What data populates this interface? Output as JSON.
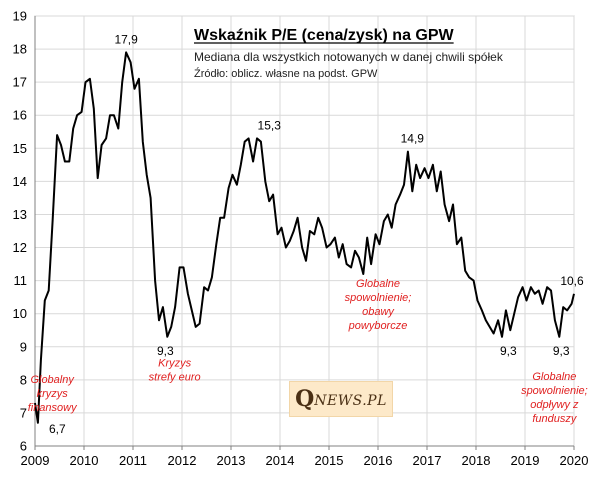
{
  "chart_data": {
    "type": "line",
    "title": "Wskaźnik P/E (cena/zysk) na GPW",
    "subtitle": "Mediana dla wszystkich notowanych w danej chwili spółek",
    "source": "Źródło: oblicz. własne na podst. GPW",
    "x_ticks": [
      "2009",
      "2010",
      "2011",
      "2012",
      "2013",
      "2014",
      "2015",
      "2016",
      "2017",
      "2018",
      "2019",
      "2020"
    ],
    "y_ticks": [
      "6",
      "7",
      "8",
      "9",
      "10",
      "11",
      "12",
      "13",
      "14",
      "15",
      "16",
      "17",
      "18",
      "19"
    ],
    "xlim": [
      2009,
      2020
    ],
    "ylim": [
      6,
      19
    ],
    "grid": true,
    "series": [
      {
        "x": [
          2009.0,
          2009.06,
          2009.12,
          2009.2,
          2009.28,
          2009.36,
          2009.45,
          2009.53,
          2009.61,
          2009.7,
          2009.78,
          2009.86,
          2009.95,
          2010.03,
          2010.12,
          2010.2,
          2010.28,
          2010.36,
          2010.45,
          2010.53,
          2010.61,
          2010.7,
          2010.78,
          2010.86,
          2010.95,
          2011.03,
          2011.12,
          2011.2,
          2011.28,
          2011.36,
          2011.45,
          2011.53,
          2011.61,
          2011.7,
          2011.78,
          2011.86,
          2011.95,
          2012.03,
          2012.12,
          2012.2,
          2012.28,
          2012.36,
          2012.45,
          2012.53,
          2012.61,
          2012.7,
          2012.78,
          2012.86,
          2012.95,
          2013.03,
          2013.12,
          2013.2,
          2013.28,
          2013.36,
          2013.45,
          2013.53,
          2013.61,
          2013.7,
          2013.78,
          2013.86,
          2013.95,
          2014.03,
          2014.12,
          2014.2,
          2014.28,
          2014.36,
          2014.45,
          2014.53,
          2014.61,
          2014.7,
          2014.78,
          2014.86,
          2014.95,
          2015.03,
          2015.12,
          2015.2,
          2015.28,
          2015.36,
          2015.45,
          2015.53,
          2015.61,
          2015.7,
          2015.78,
          2015.86,
          2015.95,
          2016.03,
          2016.12,
          2016.2,
          2016.28,
          2016.36,
          2016.45,
          2016.53,
          2016.61,
          2016.7,
          2016.78,
          2016.86,
          2016.95,
          2017.03,
          2017.12,
          2017.2,
          2017.28,
          2017.36,
          2017.45,
          2017.53,
          2017.61,
          2017.7,
          2017.78,
          2017.86,
          2017.95,
          2018.03,
          2018.12,
          2018.2,
          2018.28,
          2018.36,
          2018.45,
          2018.53,
          2018.61,
          2018.7,
          2018.78,
          2018.86,
          2018.95,
          2019.03,
          2019.12,
          2019.2,
          2019.28,
          2019.36,
          2019.45,
          2019.53,
          2019.61,
          2019.7,
          2019.78,
          2019.86,
          2019.95,
          2020.0
        ],
        "values": [
          7.3,
          6.7,
          8.6,
          10.4,
          10.7,
          12.8,
          15.4,
          15.1,
          14.6,
          14.6,
          15.6,
          16.0,
          16.1,
          17.0,
          17.1,
          16.2,
          14.1,
          15.1,
          15.3,
          16.0,
          16.0,
          15.6,
          17.0,
          17.9,
          17.6,
          16.8,
          17.1,
          15.2,
          14.2,
          13.5,
          11.0,
          9.8,
          10.2,
          9.3,
          9.6,
          10.2,
          11.4,
          11.4,
          10.6,
          10.1,
          9.6,
          9.7,
          10.8,
          10.7,
          11.1,
          12.1,
          12.9,
          12.9,
          13.8,
          14.2,
          13.9,
          14.5,
          15.2,
          15.3,
          14.6,
          15.3,
          15.2,
          14.0,
          13.4,
          13.6,
          12.4,
          12.6,
          12.0,
          12.2,
          12.5,
          12.9,
          12.0,
          11.6,
          12.5,
          12.4,
          12.9,
          12.6,
          12.0,
          12.1,
          12.3,
          11.7,
          12.1,
          11.5,
          11.4,
          11.9,
          11.7,
          11.2,
          12.3,
          11.5,
          12.4,
          12.1,
          12.8,
          13.0,
          12.6,
          13.3,
          13.6,
          13.9,
          14.9,
          13.7,
          14.5,
          14.1,
          14.4,
          14.1,
          14.5,
          13.7,
          14.3,
          13.3,
          12.8,
          13.3,
          12.1,
          12.3,
          11.3,
          11.1,
          11.0,
          10.4,
          10.1,
          9.8,
          9.6,
          9.4,
          9.8,
          9.3,
          10.1,
          9.5,
          10.0,
          10.5,
          10.8,
          10.4,
          10.8,
          10.6,
          10.7,
          10.3,
          10.8,
          10.7,
          9.8,
          9.3,
          10.2,
          10.1,
          10.3,
          10.6
        ],
        "color": "#000000"
      }
    ],
    "point_labels": [
      {
        "text": "6,7",
        "x": 2009.06,
        "y": 6.7
      },
      {
        "text": "17,9",
        "x": 2010.86,
        "y": 17.9
      },
      {
        "text": "9,3",
        "x": 2011.7,
        "y": 9.3
      },
      {
        "text": "15,3",
        "x": 2013.78,
        "y": 15.3
      },
      {
        "text": "14,9",
        "x": 2016.7,
        "y": 14.9
      },
      {
        "text": "9,3",
        "x": 2018.7,
        "y": 9.3
      },
      {
        "text": "9,3",
        "x": 2019.78,
        "y": 9.3
      },
      {
        "text": "10,6",
        "x": 2020.0,
        "y": 10.6
      }
    ],
    "annotations": [
      {
        "lines": [
          "Globalny",
          "kryzys",
          "finansowy"
        ],
        "x": 2009.35,
        "y": 7.9
      },
      {
        "lines": [
          "Kryzys",
          "strefy euro"
        ],
        "x": 2011.85,
        "y": 8.4
      },
      {
        "lines": [
          "Globalne",
          "spowolnienie;",
          "obawy",
          "powyborcze"
        ],
        "x": 2016.0,
        "y": 10.8
      },
      {
        "lines": [
          "Globalne",
          "spowolnienie;",
          "odpływy z",
          "funduszy"
        ],
        "x": 2019.6,
        "y": 8.0
      }
    ]
  },
  "logo": {
    "q": "Q",
    "rest": "NEWS.PL"
  }
}
